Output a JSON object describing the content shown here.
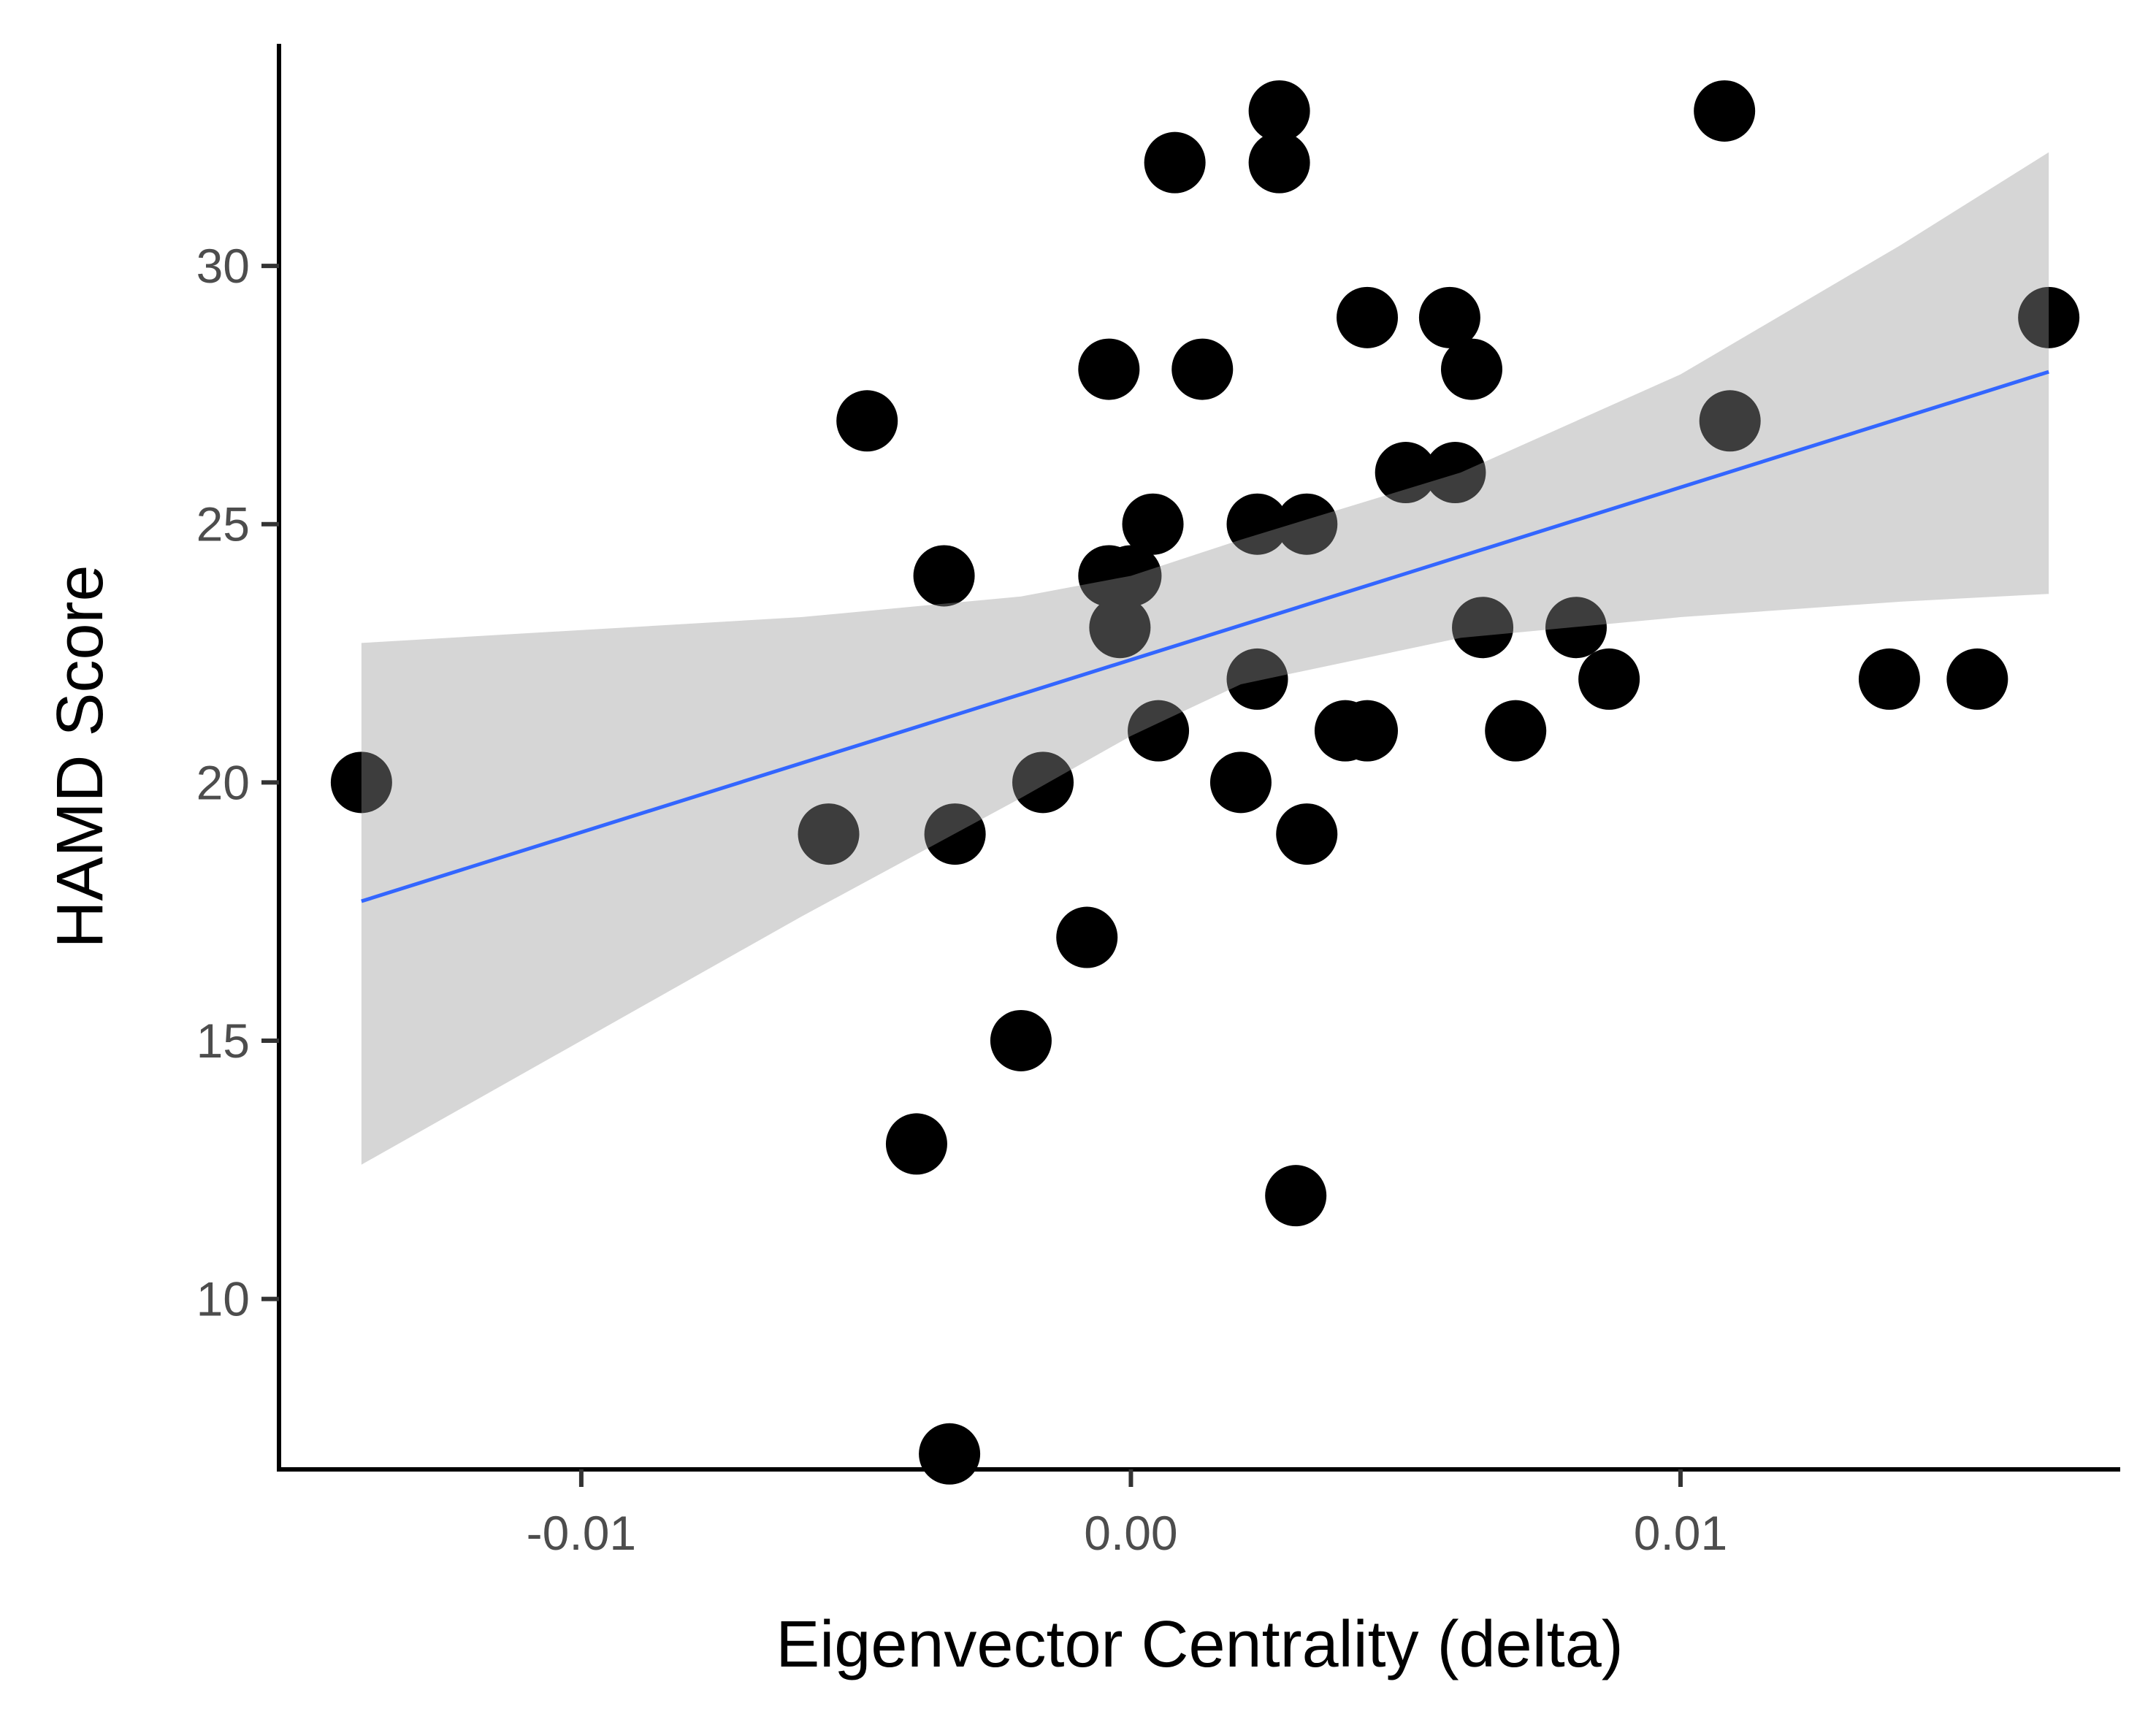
{
  "chart_data": {
    "type": "scatter",
    "title": "",
    "xlabel": "Eigenvector Centrality (delta)",
    "ylabel": "HAMD Score",
    "xlim": [
      -0.0155,
      0.018
    ],
    "ylim": [
      6.7,
      34.3
    ],
    "x_ticks": [
      -0.01,
      0.0,
      0.01
    ],
    "x_tick_labels": [
      "-0.01",
      "0.00",
      "0.01"
    ],
    "y_ticks": [
      10,
      15,
      20,
      25,
      30
    ],
    "y_tick_labels": [
      "10",
      "15",
      "20",
      "25",
      "30"
    ],
    "grid": false,
    "legend": "none",
    "points": [
      {
        "x": -0.014,
        "y": 20
      },
      {
        "x": -0.0055,
        "y": 19
      },
      {
        "x": -0.0048,
        "y": 27
      },
      {
        "x": -0.0039,
        "y": 13
      },
      {
        "x": -0.0034,
        "y": 24
      },
      {
        "x": -0.0033,
        "y": 7
      },
      {
        "x": -0.0032,
        "y": 19
      },
      {
        "x": -0.002,
        "y": 15
      },
      {
        "x": -0.0016,
        "y": 20
      },
      {
        "x": -0.0008,
        "y": 17
      },
      {
        "x": -0.0004,
        "y": 28
      },
      {
        "x": -0.0004,
        "y": 24
      },
      {
        "x": 0.0,
        "y": 24
      },
      {
        "x": -0.0002,
        "y": 23
      },
      {
        "x": 0.0004,
        "y": 25
      },
      {
        "x": 0.0005,
        "y": 21
      },
      {
        "x": 0.0008,
        "y": 32
      },
      {
        "x": 0.0013,
        "y": 28
      },
      {
        "x": 0.002,
        "y": 20
      },
      {
        "x": 0.0023,
        "y": 25
      },
      {
        "x": 0.0023,
        "y": 22
      },
      {
        "x": 0.0027,
        "y": 33
      },
      {
        "x": 0.0027,
        "y": 32
      },
      {
        "x": 0.003,
        "y": 12
      },
      {
        "x": 0.0032,
        "y": 19
      },
      {
        "x": 0.0032,
        "y": 25
      },
      {
        "x": 0.0039,
        "y": 21
      },
      {
        "x": 0.0043,
        "y": 21
      },
      {
        "x": 0.0043,
        "y": 29
      },
      {
        "x": 0.005,
        "y": 26
      },
      {
        "x": 0.0058,
        "y": 29
      },
      {
        "x": 0.0059,
        "y": 26
      },
      {
        "x": 0.0062,
        "y": 28
      },
      {
        "x": 0.0064,
        "y": 23
      },
      {
        "x": 0.007,
        "y": 21
      },
      {
        "x": 0.0081,
        "y": 23
      },
      {
        "x": 0.0087,
        "y": 22
      },
      {
        "x": 0.0108,
        "y": 33
      },
      {
        "x": 0.0109,
        "y": 27
      },
      {
        "x": 0.0138,
        "y": 22
      },
      {
        "x": 0.0154,
        "y": 22
      },
      {
        "x": 0.0167,
        "y": 29
      }
    ],
    "regression": {
      "method": "lm",
      "x": [
        -0.014,
        0.0167
      ],
      "y": [
        17.7,
        27.95
      ],
      "color": "#3366FF"
    },
    "confidence_band": {
      "color": "#999999",
      "x": [
        -0.014,
        -0.01,
        -0.006,
        -0.002,
        0.0,
        0.002,
        0.006,
        0.01,
        0.014,
        0.0167
      ],
      "lower": [
        12.6,
        15.0,
        17.4,
        19.7,
        20.9,
        21.9,
        22.8,
        23.2,
        23.5,
        23.65
      ],
      "upper": [
        22.7,
        22.95,
        23.2,
        23.6,
        24.0,
        24.7,
        26.0,
        27.9,
        30.4,
        32.2
      ]
    },
    "point_color": "#000000"
  }
}
